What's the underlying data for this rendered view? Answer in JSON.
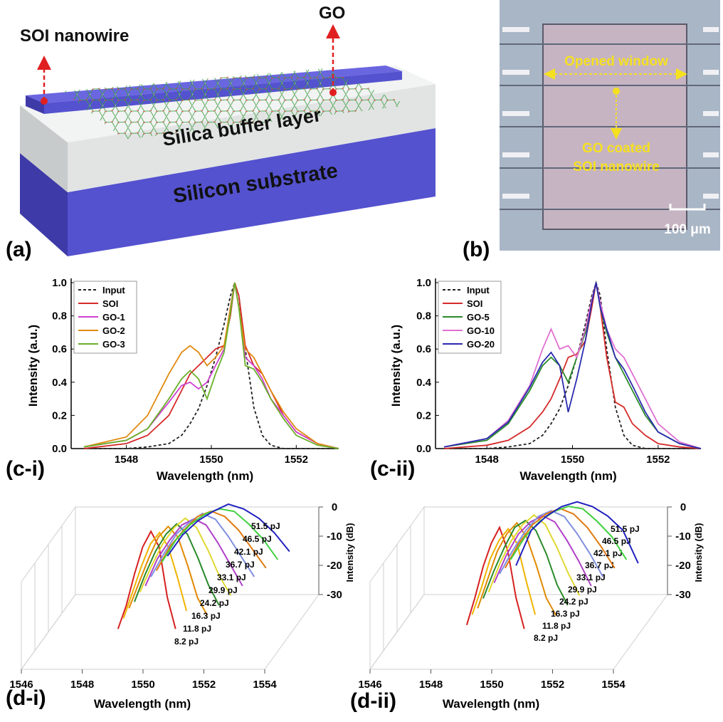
{
  "panel_a": {
    "label": "(a)",
    "annotations": [
      "SOI nanowire",
      "GO",
      "Silica buffer layer",
      "Silicon substrate"
    ]
  },
  "panel_b": {
    "label": "(b)",
    "annotations": [
      "Opened window",
      "GO coated",
      "SOI nanowire"
    ],
    "scale_bar": "100 μm"
  },
  "chart_data": [
    {
      "type": "line",
      "label": "(c-i)",
      "xlabel": "Wavelength (nm)",
      "ylabel": "Intensity (a.u.)",
      "x": [
        1547,
        1548,
        1548.5,
        1549,
        1549.3,
        1549.5,
        1549.7,
        1549.9,
        1550.1,
        1550.3,
        1550.45,
        1550.55,
        1550.65,
        1550.8,
        1551,
        1551.2,
        1551.4,
        1551.7,
        1552,
        1552.5,
        1553
      ],
      "xlim": [
        1546.7,
        1553
      ],
      "xticks": [
        1548,
        1550,
        1552
      ],
      "ylim": [
        0,
        1
      ],
      "yticks": [
        {
          "value": 0,
          "label": "0.0"
        },
        0.2,
        0.4,
        0.6,
        0.8,
        {
          "value": 1,
          "label": "1.0"
        }
      ],
      "legend": "upper left",
      "series": [
        {
          "name": "Input",
          "color": "#222222",
          "dash": true,
          "values": [
            0,
            0,
            0.01,
            0.03,
            0.08,
            0.15,
            0.24,
            0.38,
            0.55,
            0.75,
            0.92,
            1,
            0.92,
            0.6,
            0.25,
            0.08,
            0.02,
            0,
            0,
            0,
            0
          ]
        },
        {
          "name": "SOI",
          "color": "#d62a2a",
          "values": [
            0,
            0.03,
            0.08,
            0.2,
            0.35,
            0.45,
            0.5,
            0.55,
            0.6,
            0.62,
            0.8,
            1,
            0.92,
            0.62,
            0.5,
            0.45,
            0.35,
            0.2,
            0.1,
            0.03,
            0
          ]
        },
        {
          "name": "GO-1",
          "color": "#d040d0",
          "values": [
            0.01,
            0.05,
            0.12,
            0.28,
            0.38,
            0.4,
            0.36,
            0.4,
            0.5,
            0.6,
            0.85,
            1,
            0.85,
            0.55,
            0.5,
            0.42,
            0.3,
            0.2,
            0.1,
            0.03,
            0
          ]
        },
        {
          "name": "GO-2",
          "color": "#e08a10",
          "values": [
            0.01,
            0.07,
            0.2,
            0.45,
            0.58,
            0.62,
            0.58,
            0.5,
            0.55,
            0.62,
            0.85,
            1,
            0.85,
            0.6,
            0.55,
            0.45,
            0.35,
            0.22,
            0.12,
            0.03,
            0
          ]
        },
        {
          "name": "GO-3",
          "color": "#6ab02a",
          "values": [
            0.01,
            0.05,
            0.12,
            0.3,
            0.42,
            0.47,
            0.42,
            0.3,
            0.45,
            0.58,
            0.82,
            1,
            0.85,
            0.5,
            0.48,
            0.4,
            0.3,
            0.18,
            0.08,
            0.02,
            0
          ]
        }
      ]
    },
    {
      "type": "line",
      "label": "(c-ii)",
      "xlabel": "Wavelength (nm)",
      "ylabel": "Intensity (a.u.)",
      "x": [
        1547,
        1548,
        1548.5,
        1549,
        1549.3,
        1549.5,
        1549.7,
        1549.9,
        1550.1,
        1550.3,
        1550.45,
        1550.55,
        1550.65,
        1550.8,
        1551,
        1551.2,
        1551.4,
        1551.7,
        1552,
        1552.5,
        1553
      ],
      "xlim": [
        1546.8,
        1553
      ],
      "xticks": [
        1548,
        1550,
        1552
      ],
      "ylim": [
        0,
        1
      ],
      "yticks": [
        {
          "value": 0,
          "label": "0.0"
        },
        0.2,
        0.4,
        0.6,
        0.8,
        {
          "value": 1,
          "label": "1.0"
        }
      ],
      "legend": "upper left",
      "series": [
        {
          "name": "Input",
          "color": "#222222",
          "dash": true,
          "values": [
            0,
            0,
            0.01,
            0.03,
            0.08,
            0.15,
            0.24,
            0.38,
            0.55,
            0.75,
            0.92,
            1,
            0.92,
            0.6,
            0.25,
            0.08,
            0.02,
            0,
            0,
            0,
            0
          ]
        },
        {
          "name": "SOI",
          "color": "#d62a2a",
          "values": [
            0,
            0.02,
            0.05,
            0.13,
            0.22,
            0.3,
            0.42,
            0.55,
            0.57,
            0.65,
            0.85,
            1,
            0.85,
            0.55,
            0.28,
            0.25,
            0.15,
            0.08,
            0.03,
            0.01,
            0
          ]
        },
        {
          "name": "GO-5",
          "color": "#2a8a2a",
          "values": [
            0.01,
            0.05,
            0.15,
            0.35,
            0.5,
            0.55,
            0.5,
            0.4,
            0.55,
            0.7,
            0.9,
            1,
            0.85,
            0.7,
            0.55,
            0.45,
            0.35,
            0.2,
            0.1,
            0.03,
            0
          ]
        },
        {
          "name": "GO-10",
          "color": "#e070d0",
          "values": [
            0.01,
            0.06,
            0.17,
            0.38,
            0.6,
            0.72,
            0.6,
            0.62,
            0.55,
            0.72,
            0.9,
            1,
            0.88,
            0.72,
            0.6,
            0.55,
            0.45,
            0.3,
            0.15,
            0.04,
            0
          ]
        },
        {
          "name": "GO-20",
          "color": "#2a2ab0",
          "values": [
            0.01,
            0.06,
            0.16,
            0.37,
            0.52,
            0.58,
            0.5,
            0.22,
            0.42,
            0.65,
            0.88,
            1,
            0.85,
            0.72,
            0.55,
            0.48,
            0.38,
            0.22,
            0.1,
            0.03,
            0
          ]
        }
      ]
    },
    {
      "type": "waterfall",
      "label": "(d-i)",
      "xlabel": "Wavelength (nm)",
      "ylabel": "Intensity (dB)",
      "x": [
        1548.5,
        1549,
        1549.5,
        1550,
        1550.5,
        1551,
        1551.5,
        1552,
        1552.5
      ],
      "xlim": [
        1546,
        1554
      ],
      "xticks": [
        1546,
        1548,
        1550,
        1552,
        1554
      ],
      "ylim": [
        -30,
        0
      ],
      "yticks": [
        0,
        -10,
        -20,
        -30
      ],
      "series": [
        {
          "name": "8.2 pJ",
          "color": "#d62020",
          "values": [
            -30,
            -24,
            -16,
            -9,
            -5,
            -9,
            -22,
            -30,
            null
          ]
        },
        {
          "name": "11.8 pJ",
          "color": "#f0b400",
          "values": [
            -29,
            -22,
            -15,
            -9,
            -6,
            -10,
            -18,
            -27,
            null
          ]
        },
        {
          "name": "16.3 pJ",
          "color": "#e08a00",
          "values": [
            -28,
            -21,
            -14,
            -8,
            -5,
            -8,
            -16,
            -25,
            -30
          ]
        },
        {
          "name": "24.2 pJ",
          "color": "#2a8a2a",
          "values": [
            -28,
            -20,
            -13,
            -8,
            -5,
            -8,
            -15,
            -23,
            -29
          ]
        },
        {
          "name": "29.9 pJ",
          "color": "#e0d830",
          "values": [
            -27,
            -19,
            -12,
            -7,
            -4,
            -7,
            -14,
            -22,
            -28
          ]
        },
        {
          "name": "33.1 pJ",
          "color": "#b040c8",
          "values": [
            -27,
            -18,
            -12,
            -7,
            -5,
            -7,
            -13,
            -20,
            -27
          ]
        },
        {
          "name": "36.7 pJ",
          "color": "#8090e0",
          "values": [
            -26,
            -18,
            -11,
            -7,
            -4,
            -6,
            -12,
            -19,
            -26
          ]
        },
        {
          "name": "42.1 pJ",
          "color": "#e07a10",
          "values": [
            -26,
            -17,
            -11,
            -6,
            -4,
            -6,
            -11,
            -18,
            -25
          ]
        },
        {
          "name": "46.5 pJ",
          "color": "#40d040",
          "values": [
            -25,
            -16,
            -10,
            -6,
            -4,
            -5,
            -10,
            -16,
            -24
          ]
        },
        {
          "name": "51.5 pJ",
          "color": "#2020c0",
          "values": [
            -25,
            -16,
            -10,
            -6,
            -3,
            -5,
            -9,
            -15,
            -23
          ]
        }
      ]
    },
    {
      "type": "waterfall",
      "label": "(d-ii)",
      "xlabel": "Wavelength (nm)",
      "ylabel": "Intensity (dB)",
      "x": [
        1548.5,
        1549,
        1549.5,
        1550,
        1550.5,
        1551,
        1551.5,
        1552,
        1552.5
      ],
      "xlim": [
        1546,
        1554
      ],
      "xticks": [
        1546,
        1548,
        1550,
        1552,
        1554
      ],
      "ylim": [
        -30,
        0
      ],
      "yticks": [
        0,
        -10,
        -20,
        -30
      ],
      "series": [
        {
          "name": "8.2 pJ",
          "color": "#d62020",
          "values": [
            -29,
            -22,
            -14,
            -8,
            -4,
            -10,
            -22,
            -30,
            null
          ]
        },
        {
          "name": "11.8 pJ",
          "color": "#f0b400",
          "values": [
            -28,
            -21,
            -13,
            -8,
            -5,
            -9,
            -19,
            -28,
            null
          ]
        },
        {
          "name": "16.3 pJ",
          "color": "#e08a00",
          "values": [
            -28,
            -20,
            -12,
            -7,
            -4,
            -8,
            -16,
            -25,
            -30
          ]
        },
        {
          "name": "24.2 pJ",
          "color": "#2a8a2a",
          "values": [
            -27,
            -19,
            -12,
            -6,
            -4,
            -7,
            -14,
            -23,
            -29
          ]
        },
        {
          "name": "29.9 pJ",
          "color": "#e0d830",
          "values": [
            -27,
            -18,
            -11,
            -6,
            -3,
            -6,
            -13,
            -21,
            -28
          ]
        },
        {
          "name": "33.1 pJ",
          "color": "#b040c8",
          "values": [
            -26,
            -17,
            -10,
            -6,
            -4,
            -6,
            -12,
            -19,
            -27
          ]
        },
        {
          "name": "36.7 pJ",
          "color": "#8090e0",
          "values": [
            -25,
            -17,
            -10,
            -5,
            -3,
            -5,
            -11,
            -18,
            -26
          ]
        },
        {
          "name": "42.1 pJ",
          "color": "#e07a10",
          "values": [
            -25,
            -16,
            -9,
            -5,
            -3,
            -5,
            -10,
            -17,
            -25
          ]
        },
        {
          "name": "46.5 pJ",
          "color": "#40d040",
          "values": [
            -24,
            -15,
            -9,
            -5,
            -3,
            -4,
            -9,
            -15,
            -24
          ]
        },
        {
          "name": "51.5 pJ",
          "color": "#2020c0",
          "values": [
            -29,
            -14,
            -8,
            -4,
            -2,
            -4,
            -8,
            -14,
            -28
          ]
        }
      ]
    }
  ]
}
